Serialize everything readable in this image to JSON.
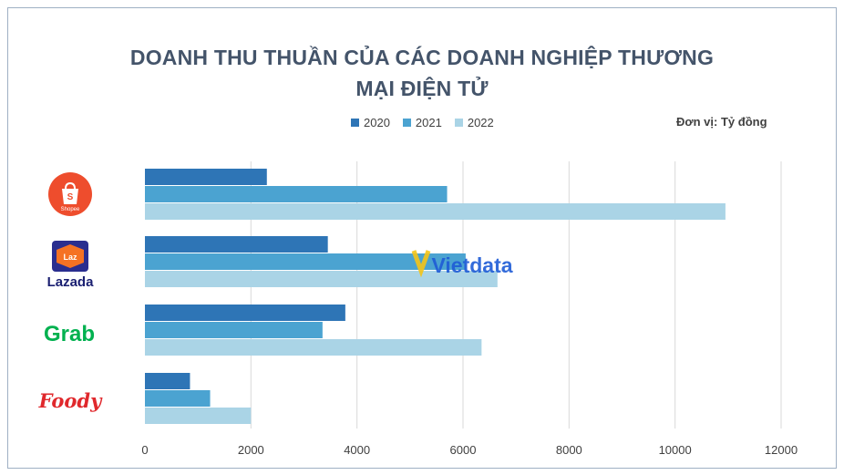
{
  "title_line1": "DOANH THU THUẦN CỦA CÁC DOANH NGHIỆP THƯƠNG",
  "title_line2": "MẠI ĐIỆN TỬ",
  "unit_label": "Đơn vị: Tỷ đồng",
  "watermark": "Vietdata",
  "logos": {
    "shopee": "Shopee",
    "lazada_badge": "Laz",
    "lazada": "Lazada",
    "grab": "Grab",
    "foody": "Foody"
  },
  "chart_data": {
    "type": "bar",
    "orientation": "horizontal",
    "categories": [
      "Shopee",
      "Lazada",
      "Grab",
      "Foody"
    ],
    "series": [
      {
        "name": "2020",
        "color": "#2e75b6",
        "values": [
          2300,
          3450,
          3780,
          850
        ]
      },
      {
        "name": "2021",
        "color": "#4ba3d1",
        "values": [
          5700,
          6050,
          3350,
          1230
        ]
      },
      {
        "name": "2022",
        "color": "#aad4e6",
        "values": [
          10950,
          6650,
          6350,
          2000
        ]
      }
    ],
    "xlim": [
      0,
      12000
    ],
    "x_ticks": [
      0,
      2000,
      4000,
      6000,
      8000,
      10000,
      12000
    ],
    "grid": true,
    "legend_position": "top"
  }
}
